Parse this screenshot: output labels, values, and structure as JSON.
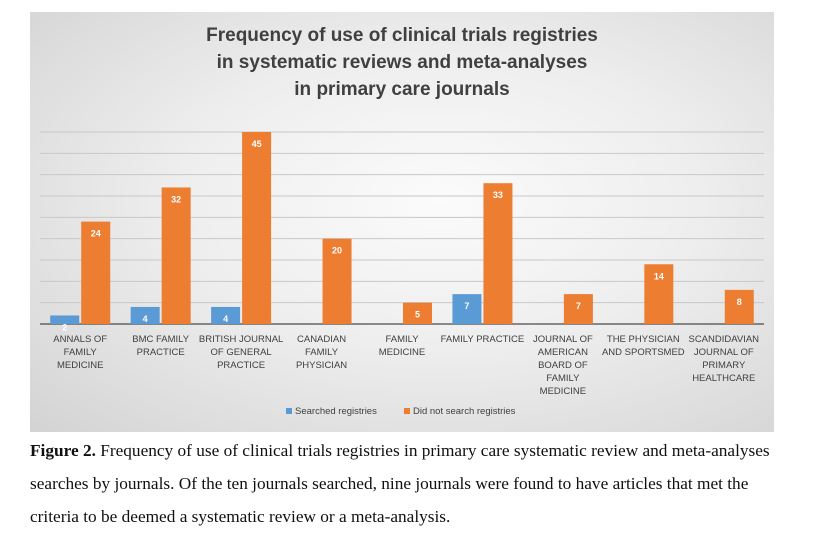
{
  "chart_data": {
    "type": "bar",
    "title_lines": [
      "Frequency of use of clinical trials registries",
      "in systematic reviews and meta-analyses",
      "in primary care journals"
    ],
    "categories": [
      [
        "ANNALS OF",
        "FAMILY",
        "MEDICINE"
      ],
      [
        "BMC FAMILY",
        "PRACTICE"
      ],
      [
        "BRITISH JOURNAL",
        "OF GENERAL",
        "PRACTICE"
      ],
      [
        "CANADIAN",
        "FAMILY",
        "PHYSICIAN"
      ],
      [
        "FAMILY",
        "MEDICINE"
      ],
      [
        "FAMILY PRACTICE"
      ],
      [
        "JOURNAL OF",
        "AMERICAN",
        "BOARD OF",
        "FAMILY",
        "MEDICINE"
      ],
      [
        "THE PHYSICIAN",
        "AND SPORTSMED"
      ],
      [
        "SCANDIDAVIAN",
        "JOURNAL OF",
        "PRIMARY",
        "HEALTHCARE"
      ]
    ],
    "series": [
      {
        "name": "Searched registries",
        "color": "#5b9bd5",
        "values": [
          2,
          4,
          4,
          null,
          null,
          7,
          null,
          null,
          null
        ]
      },
      {
        "name": "Did not search registries",
        "color": "#ed7d31",
        "values": [
          24,
          32,
          45,
          20,
          5,
          33,
          7,
          14,
          8
        ]
      }
    ],
    "ylim": [
      0,
      45
    ],
    "grid": true,
    "legend_position": "bottom"
  },
  "caption": {
    "label": "Figure 2.",
    "text": "Frequency of use of clinical trials registries in primary care systematic review and meta-analyses searches by journals. Of the ten journals searched, nine journals were found to have articles that met the criteria to be deemed a systematic review or a meta-analysis."
  }
}
